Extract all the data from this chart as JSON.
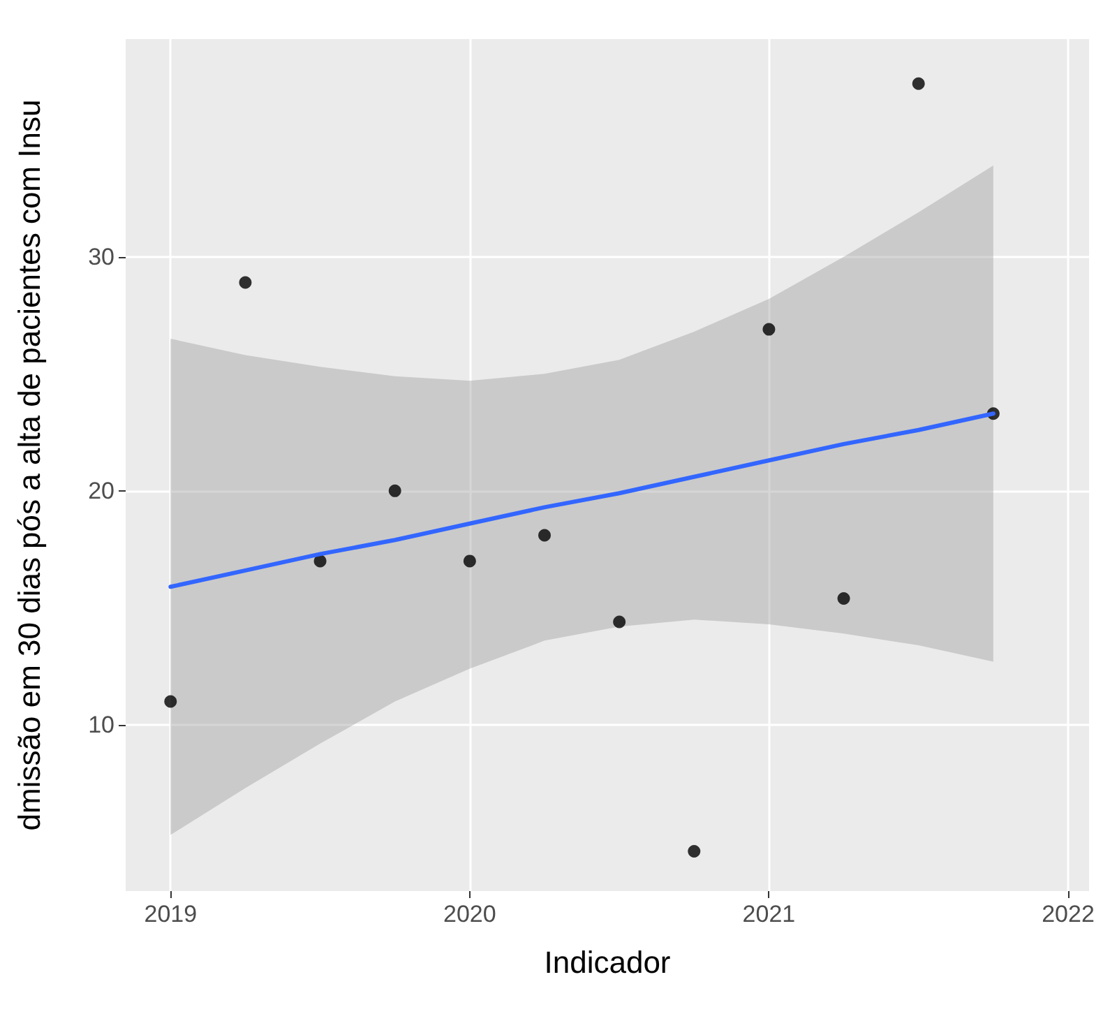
{
  "chart_data": {
    "type": "scatter",
    "xlabel": "Indicador",
    "ylabel": "dmissão em 30 dias pós a alta de pacientes com Insu",
    "x": [
      2019,
      2019.25,
      2019.5,
      2019.75,
      2020,
      2020.25,
      2020.5,
      2020.75,
      2021,
      2021.25,
      2021.5,
      2021.75
    ],
    "series": [
      {
        "type": "scatter",
        "color": "#000000",
        "values": [
          11.0,
          28.9,
          17.0,
          20.0,
          17.0,
          18.1,
          14.4,
          4.6,
          26.9,
          15.4,
          37.4,
          23.3
        ]
      },
      {
        "type": "line",
        "color": "#3366ff",
        "x": [
          2019,
          2019.25,
          2019.5,
          2019.75,
          2020,
          2020.25,
          2020.5,
          2020.75,
          2021,
          2021.25,
          2021.5,
          2021.75
        ],
        "values": [
          15.9,
          16.6,
          17.3,
          17.9,
          18.6,
          19.3,
          19.9,
          20.6,
          21.3,
          22.0,
          22.6,
          23.3
        ],
        "lower": [
          5.3,
          7.3,
          9.2,
          11.0,
          12.4,
          13.6,
          14.2,
          14.5,
          14.3,
          13.9,
          13.4,
          12.7
        ],
        "upper": [
          26.5,
          25.8,
          25.3,
          24.9,
          24.7,
          25.0,
          25.6,
          26.8,
          28.2,
          30.0,
          31.9,
          33.9
        ],
        "marker": "none"
      }
    ],
    "xlim": [
      2018.85,
      2022.07
    ],
    "xticks": [
      2019,
      2020,
      2021,
      2022
    ],
    "ylim": [
      2.9,
      39.3
    ],
    "yticks": [
      10,
      20,
      30
    ],
    "grid": true,
    "marker": "circle",
    "line_style": "solid"
  }
}
